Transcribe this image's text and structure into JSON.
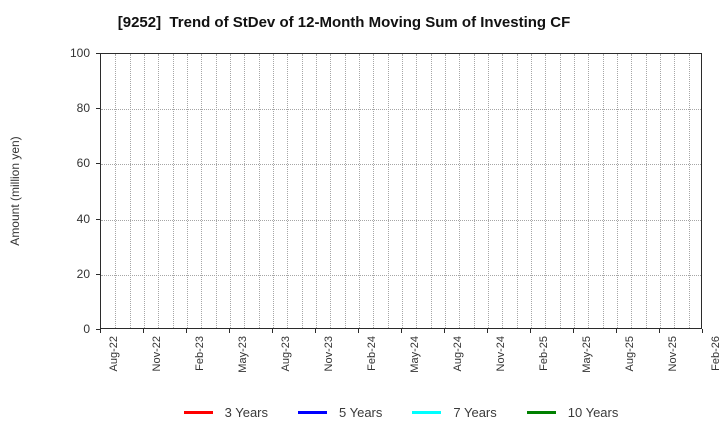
{
  "chart_data": {
    "type": "line",
    "title": "[9252]  Trend of StDev of 12-Month Moving Sum of Investing CF",
    "xlabel": "",
    "ylabel": "Amount (million yen)",
    "ylim": [
      0,
      100
    ],
    "yticks": [
      0,
      20,
      40,
      60,
      80,
      100
    ],
    "xtick_labels": [
      "Aug-22",
      "Nov-22",
      "Feb-23",
      "May-23",
      "Aug-23",
      "Nov-23",
      "Feb-24",
      "May-24",
      "Aug-24",
      "Nov-24",
      "Feb-25",
      "May-25",
      "Aug-25",
      "Nov-25",
      "Feb-26"
    ],
    "months_total": 43,
    "months_between_labels": 3,
    "grid": true,
    "grid_style": "dotted",
    "legend_position": "bottom-center",
    "plot_empty": true,
    "series": [
      {
        "name": "3 Years",
        "color": "#ff0000",
        "values": []
      },
      {
        "name": "5 Years",
        "color": "#0000ff",
        "values": []
      },
      {
        "name": "7 Years",
        "color": "#00ffff",
        "values": []
      },
      {
        "name": "10 Years",
        "color": "#008000",
        "values": []
      }
    ]
  },
  "styles": {
    "grid_color": "#a6a6a6",
    "spine_color": "#2b2b2b",
    "tick_text_color": "#333333",
    "title_color": "#111111",
    "background": "#ffffff"
  }
}
